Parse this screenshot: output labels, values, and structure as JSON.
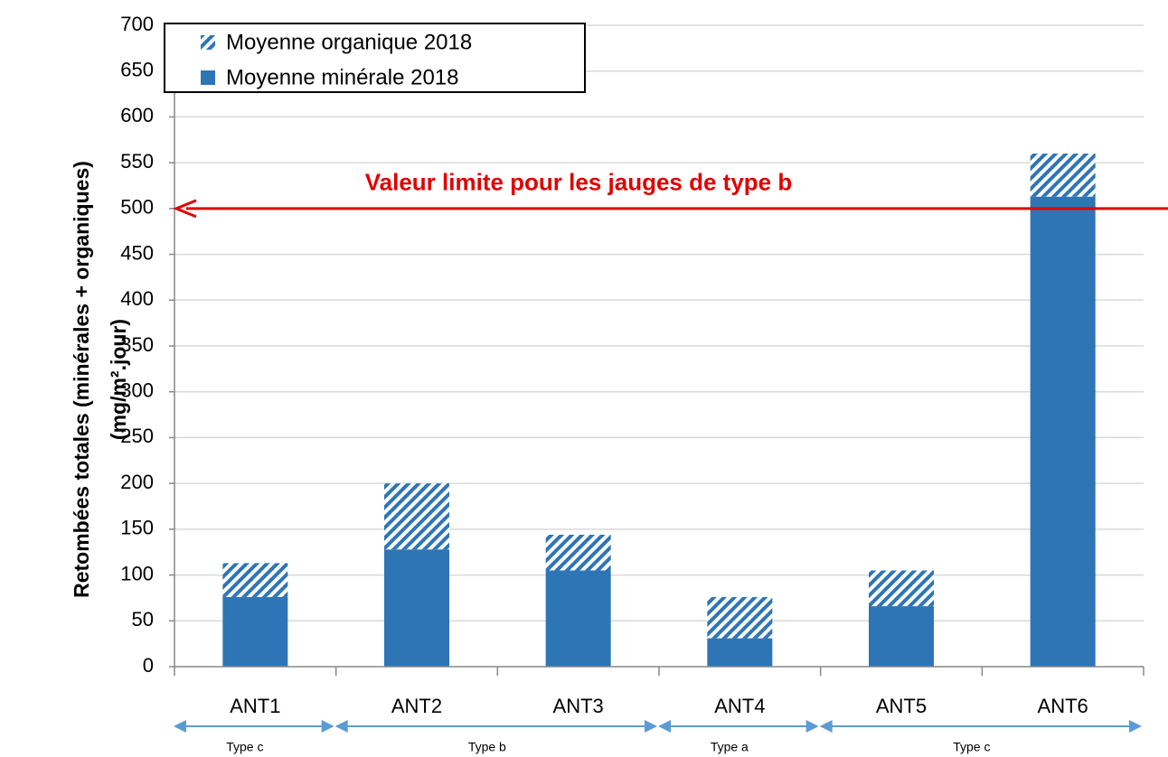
{
  "chart_data": {
    "type": "bar",
    "stacked": true,
    "y_label": [
      "Retombées totales (minérales + organiques)",
      "(mg/m².jour)"
    ],
    "categories": [
      "ANT1",
      "ANT2",
      "ANT3",
      "ANT4",
      "ANT5",
      "ANT6"
    ],
    "series": [
      {
        "name": "Moyenne minérale 2018",
        "color": "#2e75b6",
        "pattern": "solid",
        "values": [
          76,
          128,
          105,
          31,
          66,
          513
        ]
      },
      {
        "name": "Moyenne organique 2018",
        "color": "#2e75b6",
        "pattern": "hatch",
        "values": [
          37,
          72,
          39,
          45,
          39,
          47
        ]
      }
    ],
    "ylim": [
      0,
      700
    ],
    "yticks": [
      0,
      50,
      100,
      150,
      200,
      250,
      300,
      350,
      400,
      450,
      500,
      550,
      600,
      650,
      700
    ],
    "grid": true,
    "legend": "top-left",
    "limit": {
      "value": 500,
      "label": "Valeur limite pour les jauges de type b",
      "color": "#e00000"
    },
    "groups": [
      {
        "label": "Type c",
        "span": 1
      },
      {
        "label": "Type b",
        "span": 2
      },
      {
        "label": "Type a",
        "span": 1
      },
      {
        "label": "Type c",
        "span": 2
      }
    ],
    "group_color": "#5b9bd5"
  }
}
